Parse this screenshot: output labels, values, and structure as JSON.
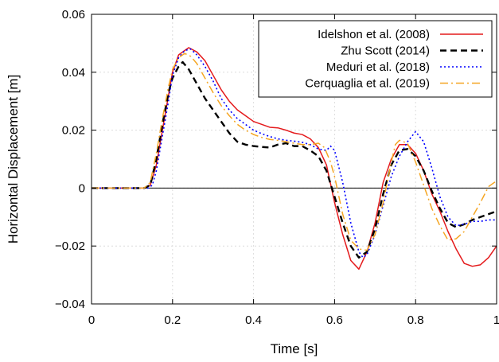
{
  "chart_data": {
    "type": "line",
    "title": "",
    "xlabel": "Time [s]",
    "ylabel": "Horizontal Displacement [m]",
    "xlim": [
      0,
      1
    ],
    "ylim": [
      -0.04,
      0.06
    ],
    "grid": true,
    "legend_position": "top-right",
    "x_ticks": [
      0,
      0.2,
      0.4,
      0.6,
      0.8,
      1
    ],
    "x_tick_labels": [
      "0",
      "0.2",
      "0.4",
      "0.6",
      "0.8",
      "1"
    ],
    "y_ticks": [
      -0.04,
      -0.02,
      0,
      0.02,
      0.04,
      0.06
    ],
    "y_tick_labels": [
      "−0.04",
      "−0.02",
      "0",
      "0.02",
      "0.04",
      "0.06"
    ],
    "series": [
      {
        "name": "Idelshon et al. (2008)",
        "color": "#e41a1c",
        "style": "solid",
        "points": [
          [
            0,
            0
          ],
          [
            0.13,
            0
          ],
          [
            0.145,
            0.001
          ],
          [
            0.16,
            0.008
          ],
          [
            0.175,
            0.02
          ],
          [
            0.19,
            0.032
          ],
          [
            0.2,
            0.04
          ],
          [
            0.215,
            0.046
          ],
          [
            0.23,
            0.0475
          ],
          [
            0.24,
            0.0485
          ],
          [
            0.26,
            0.047
          ],
          [
            0.28,
            0.044
          ],
          [
            0.3,
            0.039
          ],
          [
            0.32,
            0.034
          ],
          [
            0.34,
            0.03
          ],
          [
            0.36,
            0.027
          ],
          [
            0.38,
            0.025
          ],
          [
            0.4,
            0.023
          ],
          [
            0.42,
            0.022
          ],
          [
            0.44,
            0.021
          ],
          [
            0.46,
            0.0208
          ],
          [
            0.48,
            0.02
          ],
          [
            0.5,
            0.019
          ],
          [
            0.52,
            0.0185
          ],
          [
            0.54,
            0.017
          ],
          [
            0.56,
            0.014
          ],
          [
            0.58,
            0.008
          ],
          [
            0.6,
            -0.005
          ],
          [
            0.62,
            -0.016
          ],
          [
            0.64,
            -0.025
          ],
          [
            0.66,
            -0.028
          ],
          [
            0.68,
            -0.022
          ],
          [
            0.7,
            -0.012
          ],
          [
            0.72,
            0.002
          ],
          [
            0.74,
            0.01
          ],
          [
            0.76,
            0.015
          ],
          [
            0.78,
            0.015
          ],
          [
            0.8,
            0.012
          ],
          [
            0.82,
            0.006
          ],
          [
            0.84,
            -0.002
          ],
          [
            0.86,
            -0.008
          ],
          [
            0.88,
            -0.015
          ],
          [
            0.9,
            -0.021
          ],
          [
            0.92,
            -0.026
          ],
          [
            0.94,
            -0.027
          ],
          [
            0.96,
            -0.0265
          ],
          [
            0.98,
            -0.024
          ],
          [
            1,
            -0.02
          ]
        ]
      },
      {
        "name": "Zhu  Scott (2014)",
        "color": "#000000",
        "style": "dashed",
        "points": [
          [
            0,
            0
          ],
          [
            0.13,
            0
          ],
          [
            0.145,
            0.001
          ],
          [
            0.16,
            0.01
          ],
          [
            0.175,
            0.022
          ],
          [
            0.19,
            0.033
          ],
          [
            0.2,
            0.038
          ],
          [
            0.215,
            0.042
          ],
          [
            0.225,
            0.0435
          ],
          [
            0.24,
            0.041
          ],
          [
            0.26,
            0.036
          ],
          [
            0.28,
            0.031
          ],
          [
            0.3,
            0.027
          ],
          [
            0.32,
            0.023
          ],
          [
            0.34,
            0.019
          ],
          [
            0.36,
            0.016
          ],
          [
            0.38,
            0.015
          ],
          [
            0.4,
            0.0145
          ],
          [
            0.42,
            0.0142
          ],
          [
            0.44,
            0.014
          ],
          [
            0.46,
            0.015
          ],
          [
            0.48,
            0.0155
          ],
          [
            0.5,
            0.0145
          ],
          [
            0.52,
            0.0145
          ],
          [
            0.54,
            0.013
          ],
          [
            0.56,
            0.011
          ],
          [
            0.58,
            0.006
          ],
          [
            0.6,
            -0.003
          ],
          [
            0.62,
            -0.012
          ],
          [
            0.64,
            -0.02
          ],
          [
            0.66,
            -0.024
          ],
          [
            0.68,
            -0.022
          ],
          [
            0.7,
            -0.014
          ],
          [
            0.72,
            -0.002
          ],
          [
            0.74,
            0.008
          ],
          [
            0.76,
            0.013
          ],
          [
            0.78,
            0.0135
          ],
          [
            0.8,
            0.011
          ],
          [
            0.82,
            0.006
          ],
          [
            0.84,
            -0.001
          ],
          [
            0.86,
            -0.007
          ],
          [
            0.88,
            -0.012
          ],
          [
            0.9,
            -0.0135
          ],
          [
            0.92,
            -0.0125
          ],
          [
            0.94,
            -0.011
          ],
          [
            0.96,
            -0.01
          ],
          [
            0.98,
            -0.009
          ],
          [
            1,
            -0.008
          ]
        ]
      },
      {
        "name": "Meduri et al. (2018)",
        "color": "#0000ff",
        "style": "dotted",
        "points": [
          [
            0,
            0
          ],
          [
            0.14,
            0
          ],
          [
            0.15,
            0.001
          ],
          [
            0.16,
            0.006
          ],
          [
            0.175,
            0.018
          ],
          [
            0.19,
            0.03
          ],
          [
            0.2,
            0.039
          ],
          [
            0.215,
            0.045
          ],
          [
            0.23,
            0.0475
          ],
          [
            0.245,
            0.048
          ],
          [
            0.26,
            0.046
          ],
          [
            0.28,
            0.042
          ],
          [
            0.3,
            0.037
          ],
          [
            0.32,
            0.031
          ],
          [
            0.34,
            0.027
          ],
          [
            0.36,
            0.024
          ],
          [
            0.38,
            0.022
          ],
          [
            0.4,
            0.02
          ],
          [
            0.42,
            0.0188
          ],
          [
            0.44,
            0.0178
          ],
          [
            0.46,
            0.017
          ],
          [
            0.48,
            0.0165
          ],
          [
            0.5,
            0.0162
          ],
          [
            0.52,
            0.0158
          ],
          [
            0.54,
            0.015
          ],
          [
            0.56,
            0.0135
          ],
          [
            0.58,
            0.013
          ],
          [
            0.59,
            0.0145
          ],
          [
            0.6,
            0.013
          ],
          [
            0.62,
            0.002
          ],
          [
            0.64,
            -0.012
          ],
          [
            0.66,
            -0.022
          ],
          [
            0.67,
            -0.024
          ],
          [
            0.68,
            -0.023
          ],
          [
            0.7,
            -0.016
          ],
          [
            0.72,
            -0.006
          ],
          [
            0.74,
            0.004
          ],
          [
            0.76,
            0.011
          ],
          [
            0.78,
            0.016
          ],
          [
            0.8,
            0.0195
          ],
          [
            0.82,
            0.016
          ],
          [
            0.84,
            0.007
          ],
          [
            0.86,
            -0.003
          ],
          [
            0.88,
            -0.01
          ],
          [
            0.9,
            -0.013
          ],
          [
            0.92,
            -0.0125
          ],
          [
            0.94,
            -0.0115
          ],
          [
            0.96,
            -0.0115
          ],
          [
            0.98,
            -0.011
          ],
          [
            1,
            -0.011
          ]
        ]
      },
      {
        "name": "Cerquaglia et al. (2019)",
        "color": "#f5a623",
        "style": "dashdot",
        "points": [
          [
            0,
            0
          ],
          [
            0.13,
            0
          ],
          [
            0.145,
            0.002
          ],
          [
            0.16,
            0.012
          ],
          [
            0.175,
            0.024
          ],
          [
            0.19,
            0.035
          ],
          [
            0.2,
            0.041
          ],
          [
            0.215,
            0.045
          ],
          [
            0.23,
            0.0465
          ],
          [
            0.245,
            0.0455
          ],
          [
            0.26,
            0.043
          ],
          [
            0.28,
            0.038
          ],
          [
            0.3,
            0.033
          ],
          [
            0.32,
            0.0285
          ],
          [
            0.34,
            0.025
          ],
          [
            0.36,
            0.022
          ],
          [
            0.38,
            0.02
          ],
          [
            0.4,
            0.0185
          ],
          [
            0.42,
            0.0175
          ],
          [
            0.44,
            0.0168
          ],
          [
            0.46,
            0.0165
          ],
          [
            0.48,
            0.016
          ],
          [
            0.5,
            0.0155
          ],
          [
            0.52,
            0.015
          ],
          [
            0.54,
            0.015
          ],
          [
            0.56,
            0.0155
          ],
          [
            0.575,
            0.014
          ],
          [
            0.59,
            0.009
          ],
          [
            0.6,
            0.004
          ],
          [
            0.62,
            -0.009
          ],
          [
            0.64,
            -0.018
          ],
          [
            0.66,
            -0.021
          ],
          [
            0.68,
            -0.0215
          ],
          [
            0.7,
            -0.016
          ],
          [
            0.72,
            -0.005
          ],
          [
            0.74,
            0.009
          ],
          [
            0.75,
            0.015
          ],
          [
            0.76,
            0.0165
          ],
          [
            0.78,
            0.0155
          ],
          [
            0.8,
            0.009
          ],
          [
            0.82,
            0.001
          ],
          [
            0.84,
            -0.007
          ],
          [
            0.86,
            -0.013
          ],
          [
            0.88,
            -0.018
          ],
          [
            0.9,
            -0.0175
          ],
          [
            0.92,
            -0.015
          ],
          [
            0.94,
            -0.01
          ],
          [
            0.96,
            -0.005
          ],
          [
            0.98,
            0.0005
          ],
          [
            1,
            0.0025
          ]
        ]
      }
    ]
  }
}
